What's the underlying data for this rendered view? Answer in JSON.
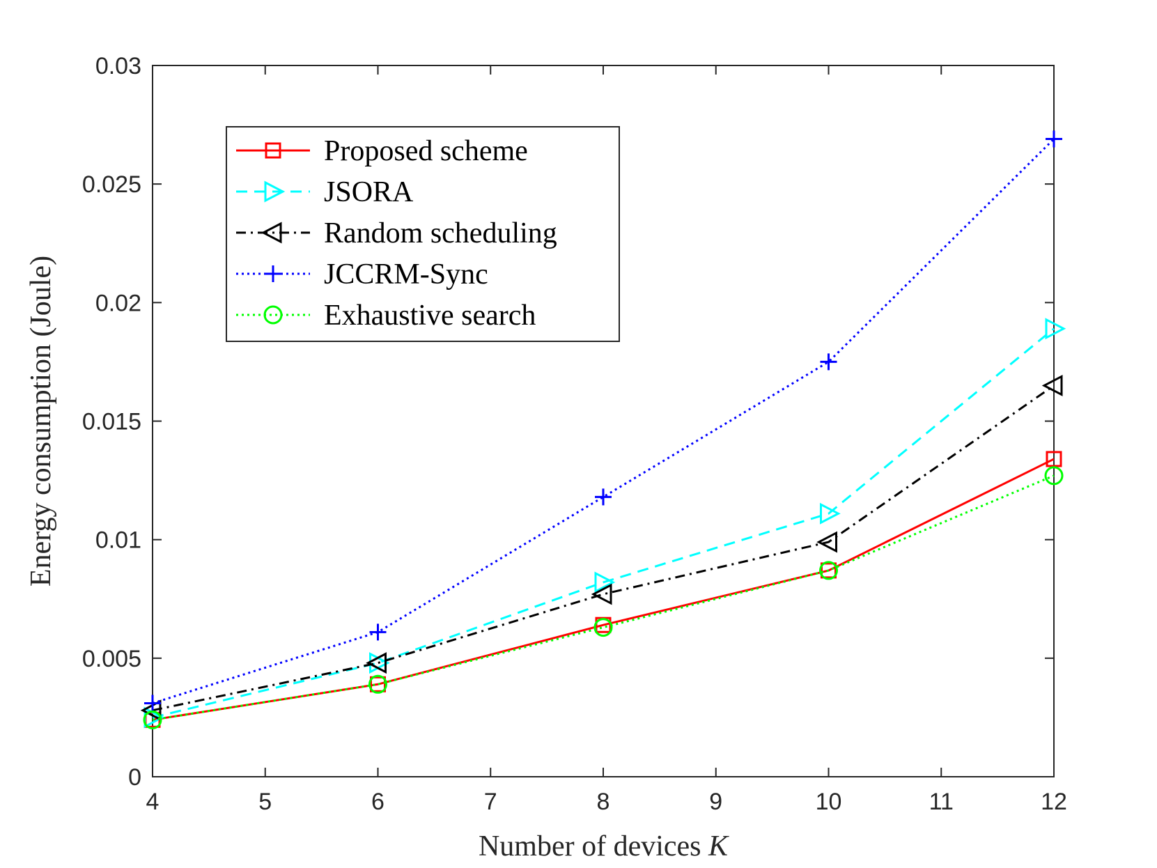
{
  "chart_data": {
    "type": "line",
    "xlabel": "Number of devices",
    "xlabel_var": "K",
    "ylabel": "Energy consumption (Joule)",
    "xlim": [
      4,
      12
    ],
    "ylim": [
      0,
      0.03
    ],
    "xticks": [
      4,
      5,
      6,
      7,
      8,
      9,
      10,
      11,
      12
    ],
    "yticks": [
      0,
      0.005,
      0.01,
      0.015,
      0.02,
      0.025,
      0.03
    ],
    "ytick_labels": [
      "0",
      "0.005",
      "0.01",
      "0.015",
      "0.02",
      "0.025",
      "0.03"
    ],
    "grid": false,
    "legend_position": "top-left",
    "x": [
      4,
      6,
      8,
      10,
      12
    ],
    "series": [
      {
        "name": "Proposed scheme",
        "color": "#ff0000",
        "dash": "solid",
        "marker": "square",
        "values": [
          0.0024,
          0.0039,
          0.0064,
          0.0087,
          0.0134
        ]
      },
      {
        "name": "JSORA",
        "color": "#00ffff",
        "dash": "dashed",
        "marker": "triangle-right",
        "values": [
          0.0025,
          0.0048,
          0.0082,
          0.0111,
          0.0189
        ]
      },
      {
        "name": "Random scheduling",
        "color": "#000000",
        "dash": "dashdot",
        "marker": "triangle-left",
        "values": [
          0.0028,
          0.0048,
          0.0077,
          0.0099,
          0.0165
        ]
      },
      {
        "name": "JCCRM-Sync",
        "color": "#0000ff",
        "dash": "dotted",
        "marker": "plus",
        "values": [
          0.0031,
          0.0061,
          0.0118,
          0.0175,
          0.0269
        ]
      },
      {
        "name": "Exhaustive search",
        "color": "#00ff00",
        "dash": "dotted",
        "marker": "circle",
        "values": [
          0.0024,
          0.0039,
          0.0063,
          0.0087,
          0.0127
        ]
      }
    ]
  }
}
